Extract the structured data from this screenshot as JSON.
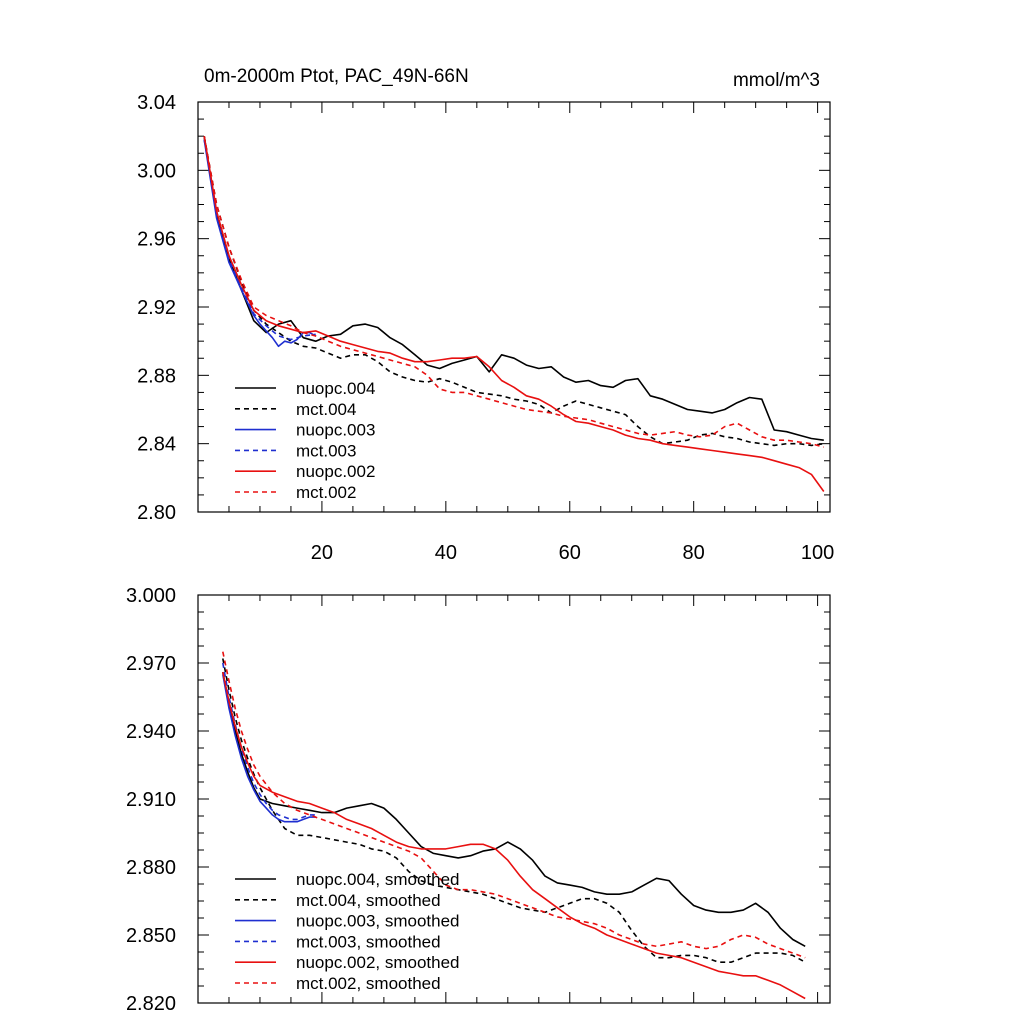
{
  "chart_data": [
    {
      "type": "line",
      "title": "0m-2000m Ptot, PAC_49N-66N",
      "units": "mmol/m^3",
      "xlim": [
        0,
        102
      ],
      "ylim": [
        2.8,
        3.04
      ],
      "x_ticks": [
        20,
        40,
        60,
        80,
        100
      ],
      "y_ticks": [
        2.8,
        2.84,
        2.88,
        2.92,
        2.96,
        3.0,
        3.04
      ],
      "y_tick_labels": [
        "2.80",
        "2.84",
        "2.88",
        "2.92",
        "2.96",
        "3.00",
        "3.04"
      ],
      "show_x_labels": true,
      "grid": false,
      "legend_position": "bottom-left",
      "series": [
        {
          "name": "nuopc.004",
          "color": "#000000",
          "dash": "solid",
          "x": [
            1,
            3,
            5,
            7,
            9,
            11,
            13,
            15,
            17,
            19,
            21,
            23,
            25,
            27,
            29,
            31,
            33,
            35,
            37,
            39,
            41,
            43,
            45,
            47,
            49,
            51,
            53,
            55,
            57,
            59,
            61,
            63,
            65,
            67,
            69,
            71,
            73,
            75,
            77,
            79,
            81,
            83,
            85,
            87,
            89,
            91,
            93,
            95,
            97,
            99,
            101
          ],
          "y": [
            3.02,
            2.975,
            2.948,
            2.93,
            2.912,
            2.905,
            2.91,
            2.912,
            2.902,
            2.9,
            2.903,
            2.904,
            2.909,
            2.91,
            2.908,
            2.902,
            2.898,
            2.892,
            2.886,
            2.884,
            2.887,
            2.889,
            2.891,
            2.882,
            2.892,
            2.89,
            2.886,
            2.884,
            2.885,
            2.879,
            2.876,
            2.877,
            2.874,
            2.873,
            2.877,
            2.878,
            2.868,
            2.866,
            2.863,
            2.86,
            2.859,
            2.858,
            2.86,
            2.864,
            2.867,
            2.866,
            2.848,
            2.847,
            2.845,
            2.843,
            2.842
          ]
        },
        {
          "name": "mct.004",
          "color": "#000000",
          "dash": "dashed",
          "x": [
            1,
            3,
            5,
            7,
            9,
            11,
            13,
            15,
            17,
            19,
            21,
            23,
            25,
            27,
            29,
            31,
            33,
            35,
            37,
            39,
            41,
            43,
            45,
            47,
            49,
            51,
            53,
            55,
            57,
            59,
            61,
            63,
            65,
            67,
            69,
            71,
            73,
            75,
            77,
            79,
            81,
            83,
            85,
            87,
            89,
            91,
            93,
            95,
            97,
            99,
            101
          ],
          "y": [
            3.02,
            2.98,
            2.955,
            2.935,
            2.918,
            2.91,
            2.905,
            2.9,
            2.897,
            2.896,
            2.893,
            2.89,
            2.892,
            2.892,
            2.888,
            2.882,
            2.879,
            2.877,
            2.876,
            2.878,
            2.876,
            2.873,
            2.87,
            2.869,
            2.868,
            2.866,
            2.865,
            2.863,
            2.858,
            2.862,
            2.865,
            2.863,
            2.861,
            2.859,
            2.857,
            2.85,
            2.844,
            2.84,
            2.841,
            2.842,
            2.845,
            2.846,
            2.844,
            2.843,
            2.841,
            2.84,
            2.839,
            2.84,
            2.84,
            2.839,
            2.84
          ]
        },
        {
          "name": "nuopc.003",
          "color": "#1f2fd0",
          "dash": "solid",
          "x": [
            1,
            3,
            5,
            7,
            9,
            10,
            11,
            12,
            13,
            14,
            15,
            16,
            17,
            18,
            19
          ],
          "y": [
            3.018,
            2.972,
            2.946,
            2.93,
            2.915,
            2.91,
            2.906,
            2.902,
            2.897,
            2.9,
            2.899,
            2.901,
            2.905,
            2.905,
            2.903
          ]
        },
        {
          "name": "mct.003",
          "color": "#1f2fd0",
          "dash": "dashed",
          "x": [
            1,
            3,
            5,
            7,
            9,
            11,
            13,
            15,
            17,
            19
          ],
          "y": [
            3.018,
            2.976,
            2.948,
            2.932,
            2.916,
            2.909,
            2.903,
            2.901,
            2.903,
            2.904
          ]
        },
        {
          "name": "nuopc.002",
          "color": "#e81010",
          "dash": "solid",
          "x": [
            1,
            3,
            5,
            7,
            9,
            11,
            13,
            15,
            17,
            19,
            21,
            23,
            25,
            27,
            29,
            31,
            33,
            35,
            37,
            39,
            41,
            43,
            45,
            47,
            49,
            51,
            53,
            55,
            57,
            59,
            61,
            63,
            65,
            67,
            69,
            71,
            73,
            75,
            77,
            79,
            81,
            83,
            85,
            87,
            89,
            91,
            93,
            95,
            97,
            99,
            101
          ],
          "y": [
            3.02,
            2.976,
            2.95,
            2.933,
            2.918,
            2.912,
            2.909,
            2.907,
            2.905,
            2.906,
            2.903,
            2.9,
            2.898,
            2.896,
            2.894,
            2.893,
            2.89,
            2.888,
            2.888,
            2.889,
            2.89,
            2.89,
            2.891,
            2.885,
            2.877,
            2.873,
            2.868,
            2.866,
            2.862,
            2.857,
            2.853,
            2.852,
            2.85,
            2.848,
            2.845,
            2.843,
            2.842,
            2.84,
            2.839,
            2.838,
            2.837,
            2.836,
            2.835,
            2.834,
            2.833,
            2.832,
            2.83,
            2.828,
            2.826,
            2.822,
            2.812
          ]
        },
        {
          "name": "mct.002",
          "color": "#e81010",
          "dash": "dashed",
          "x": [
            1,
            3,
            5,
            7,
            9,
            11,
            13,
            15,
            17,
            19,
            21,
            23,
            25,
            27,
            29,
            31,
            33,
            35,
            37,
            39,
            41,
            43,
            45,
            47,
            49,
            51,
            53,
            55,
            57,
            59,
            61,
            63,
            65,
            67,
            69,
            71,
            73,
            75,
            77,
            79,
            81,
            83,
            85,
            87,
            89,
            91,
            93,
            95,
            97,
            99,
            101
          ],
          "y": [
            3.02,
            2.98,
            2.955,
            2.936,
            2.92,
            2.915,
            2.912,
            2.909,
            2.905,
            2.903,
            2.9,
            2.897,
            2.895,
            2.893,
            2.891,
            2.889,
            2.887,
            2.885,
            2.88,
            2.872,
            2.87,
            2.87,
            2.868,
            2.866,
            2.864,
            2.862,
            2.86,
            2.859,
            2.858,
            2.856,
            2.855,
            2.854,
            2.852,
            2.85,
            2.848,
            2.846,
            2.845,
            2.846,
            2.847,
            2.845,
            2.844,
            2.845,
            2.85,
            2.852,
            2.848,
            2.844,
            2.842,
            2.842,
            2.841,
            2.84,
            2.838
          ]
        }
      ]
    },
    {
      "type": "line",
      "title": "",
      "xlim": [
        0,
        102
      ],
      "ylim": [
        2.82,
        3.0
      ],
      "x_ticks": [
        20,
        40,
        60,
        80,
        100
      ],
      "y_ticks": [
        2.82,
        2.85,
        2.88,
        2.91,
        2.94,
        2.97,
        3.0
      ],
      "y_tick_labels": [
        "2.820",
        "2.850",
        "2.880",
        "2.910",
        "2.940",
        "2.970",
        "3.000"
      ],
      "show_x_labels": false,
      "grid": false,
      "legend_position": "bottom-left",
      "series": [
        {
          "name": "nuopc.004, smoothed",
          "color": "#000000",
          "dash": "solid",
          "x": [
            4,
            5,
            6,
            7,
            8,
            9,
            10,
            12,
            14,
            16,
            18,
            20,
            22,
            24,
            26,
            28,
            30,
            32,
            34,
            36,
            38,
            40,
            42,
            44,
            46,
            48,
            50,
            52,
            54,
            56,
            58,
            60,
            62,
            64,
            66,
            68,
            70,
            72,
            74,
            76,
            78,
            80,
            82,
            84,
            86,
            88,
            90,
            92,
            94,
            96,
            98
          ],
          "y": [
            2.966,
            2.952,
            2.94,
            2.93,
            2.922,
            2.915,
            2.91,
            2.908,
            2.907,
            2.906,
            2.905,
            2.904,
            2.904,
            2.906,
            2.907,
            2.908,
            2.906,
            2.901,
            2.895,
            2.889,
            2.886,
            2.885,
            2.884,
            2.885,
            2.887,
            2.888,
            2.891,
            2.888,
            2.883,
            2.876,
            2.873,
            2.872,
            2.871,
            2.869,
            2.868,
            2.868,
            2.869,
            2.872,
            2.875,
            2.874,
            2.868,
            2.863,
            2.861,
            2.86,
            2.86,
            2.861,
            2.864,
            2.86,
            2.853,
            2.848,
            2.845
          ]
        },
        {
          "name": "mct.004, smoothed",
          "color": "#000000",
          "dash": "dashed",
          "x": [
            4,
            5,
            6,
            7,
            8,
            9,
            10,
            12,
            14,
            16,
            18,
            20,
            22,
            24,
            26,
            28,
            30,
            32,
            34,
            36,
            38,
            40,
            42,
            44,
            46,
            48,
            50,
            52,
            54,
            56,
            58,
            60,
            62,
            64,
            66,
            68,
            70,
            72,
            74,
            76,
            78,
            80,
            82,
            84,
            86,
            88,
            90,
            92,
            94,
            96,
            98
          ],
          "y": [
            2.972,
            2.958,
            2.946,
            2.936,
            2.928,
            2.921,
            2.915,
            2.905,
            2.897,
            2.894,
            2.894,
            2.893,
            2.892,
            2.891,
            2.89,
            2.888,
            2.887,
            2.884,
            2.878,
            2.874,
            2.872,
            2.871,
            2.87,
            2.869,
            2.868,
            2.866,
            2.864,
            2.862,
            2.861,
            2.86,
            2.862,
            2.864,
            2.866,
            2.866,
            2.864,
            2.86,
            2.852,
            2.845,
            2.84,
            2.84,
            2.841,
            2.841,
            2.84,
            2.838,
            2.838,
            2.84,
            2.842,
            2.842,
            2.842,
            2.841,
            2.838
          ]
        },
        {
          "name": "nuopc.003, smoothed",
          "color": "#1f2fd0",
          "dash": "solid",
          "x": [
            4,
            5,
            6,
            7,
            8,
            9,
            10,
            11,
            12,
            13,
            14,
            15,
            16,
            17,
            18,
            19
          ],
          "y": [
            2.965,
            2.95,
            2.938,
            2.928,
            2.92,
            2.914,
            2.909,
            2.906,
            2.903,
            2.901,
            2.9,
            2.9,
            2.9,
            2.901,
            2.902,
            2.902
          ]
        },
        {
          "name": "mct.003, smoothed",
          "color": "#1f2fd0",
          "dash": "dashed",
          "x": [
            4,
            5,
            6,
            7,
            8,
            9,
            10,
            11,
            12,
            13,
            14,
            15,
            16,
            17,
            18,
            19
          ],
          "y": [
            2.97,
            2.955,
            2.943,
            2.932,
            2.924,
            2.917,
            2.912,
            2.908,
            2.905,
            2.903,
            2.902,
            2.901,
            2.901,
            2.902,
            2.903,
            2.903
          ]
        },
        {
          "name": "nuopc.002, smoothed",
          "color": "#e81010",
          "dash": "solid",
          "x": [
            4,
            5,
            6,
            7,
            8,
            9,
            10,
            12,
            14,
            16,
            18,
            20,
            22,
            24,
            26,
            28,
            30,
            32,
            34,
            36,
            38,
            40,
            42,
            44,
            46,
            48,
            50,
            52,
            54,
            56,
            58,
            60,
            62,
            64,
            66,
            68,
            70,
            72,
            74,
            76,
            78,
            80,
            82,
            84,
            86,
            88,
            90,
            92,
            94,
            96,
            98
          ],
          "y": [
            2.966,
            2.953,
            2.942,
            2.933,
            2.926,
            2.92,
            2.916,
            2.913,
            2.911,
            2.909,
            2.908,
            2.906,
            2.904,
            2.901,
            2.899,
            2.897,
            2.894,
            2.891,
            2.889,
            2.888,
            2.888,
            2.888,
            2.889,
            2.89,
            2.89,
            2.888,
            2.883,
            2.876,
            2.87,
            2.866,
            2.862,
            2.858,
            2.855,
            2.853,
            2.85,
            2.848,
            2.846,
            2.844,
            2.842,
            2.841,
            2.84,
            2.838,
            2.836,
            2.834,
            2.833,
            2.832,
            2.832,
            2.83,
            2.828,
            2.825,
            2.822
          ]
        },
        {
          "name": "mct.002, smoothed",
          "color": "#e81010",
          "dash": "dashed",
          "x": [
            4,
            5,
            6,
            7,
            8,
            9,
            10,
            12,
            14,
            16,
            18,
            20,
            22,
            24,
            26,
            28,
            30,
            32,
            34,
            36,
            38,
            40,
            42,
            44,
            46,
            48,
            50,
            52,
            54,
            56,
            58,
            60,
            62,
            64,
            66,
            68,
            70,
            72,
            74,
            76,
            78,
            80,
            82,
            84,
            86,
            88,
            90,
            92,
            94,
            96,
            98
          ],
          "y": [
            2.975,
            2.962,
            2.95,
            2.94,
            2.932,
            2.925,
            2.92,
            2.913,
            2.908,
            2.905,
            2.903,
            2.901,
            2.899,
            2.897,
            2.895,
            2.893,
            2.891,
            2.889,
            2.887,
            2.884,
            2.878,
            2.872,
            2.87,
            2.87,
            2.869,
            2.868,
            2.866,
            2.864,
            2.862,
            2.86,
            2.858,
            2.857,
            2.856,
            2.855,
            2.853,
            2.85,
            2.848,
            2.846,
            2.845,
            2.846,
            2.847,
            2.845,
            2.844,
            2.845,
            2.848,
            2.85,
            2.849,
            2.846,
            2.844,
            2.842,
            2.84
          ]
        }
      ]
    }
  ]
}
